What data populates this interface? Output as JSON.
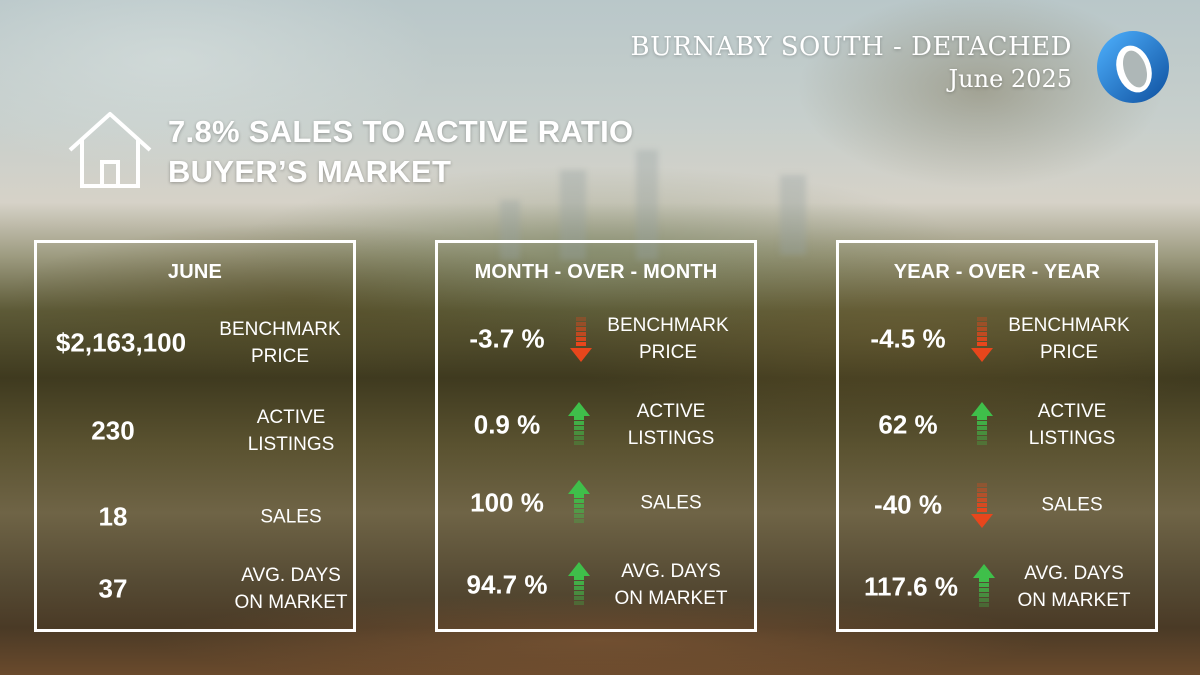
{
  "header": {
    "title": "BURNABY SOUTH -  DETACHED",
    "period": "June 2025"
  },
  "market": {
    "ratio_line": "7.8% SALES TO ACTIVE RATIO",
    "condition_line": "BUYER’S MARKET"
  },
  "icons": {
    "house": "house-outline-icon",
    "logo": "blue-ring-logo",
    "up": "green-up-arrow-icon",
    "down": "red-down-arrow-icon"
  },
  "colors": {
    "up": "#3fbf4a",
    "down": "#e8461c",
    "logo": "#1f7fd1"
  },
  "panels": [
    {
      "heading": "JUNE",
      "rows": [
        {
          "value": "$2,163,100",
          "label1": "BENCHMARK",
          "label2": "PRICE"
        },
        {
          "value": "230",
          "label1": "ACTIVE",
          "label2": "LISTINGS"
        },
        {
          "value": "18",
          "label1": "SALES",
          "label2": ""
        },
        {
          "value": "37",
          "label1": "AVG. DAYS",
          "label2": "ON MARKET"
        }
      ]
    },
    {
      "heading": "MONTH - OVER - MONTH",
      "rows": [
        {
          "value": "-3.7 %",
          "direction": "down",
          "label1": "BENCHMARK",
          "label2": "PRICE"
        },
        {
          "value": "0.9 %",
          "direction": "up",
          "label1": "ACTIVE",
          "label2": "LISTINGS"
        },
        {
          "value": "100 %",
          "direction": "up",
          "label1": "SALES",
          "label2": ""
        },
        {
          "value": "94.7 %",
          "direction": "up",
          "label1": "AVG. DAYS",
          "label2": "ON MARKET"
        }
      ]
    },
    {
      "heading": "YEAR - OVER - YEAR",
      "rows": [
        {
          "value": "-4.5 %",
          "direction": "down",
          "label1": "BENCHMARK",
          "label2": "PRICE"
        },
        {
          "value": "62 %",
          "direction": "up",
          "label1": "ACTIVE",
          "label2": "LISTINGS"
        },
        {
          "value": "-40 %",
          "direction": "down",
          "label1": "SALES",
          "label2": ""
        },
        {
          "value": "117.6 %",
          "direction": "up",
          "label1": "AVG. DAYS",
          "label2": "ON MARKET"
        }
      ]
    }
  ]
}
